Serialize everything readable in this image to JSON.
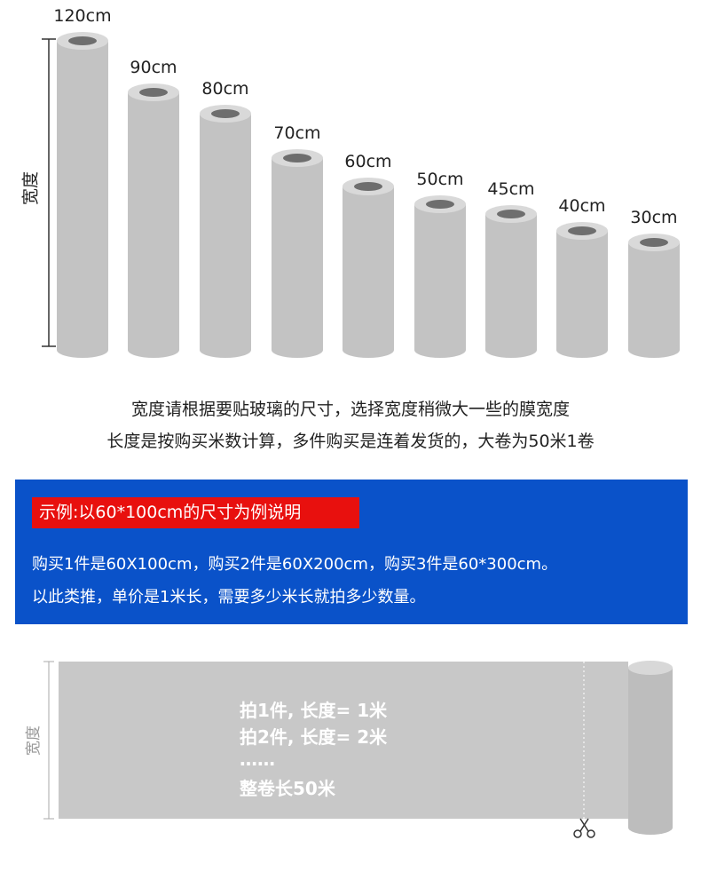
{
  "rolls": [
    {
      "label": "120cm"
    },
    {
      "label": "90cm"
    },
    {
      "label": "80cm"
    },
    {
      "label": "70cm"
    },
    {
      "label": "60cm"
    },
    {
      "label": "50cm"
    },
    {
      "label": "45cm"
    },
    {
      "label": "40cm"
    },
    {
      "label": "30cm"
    }
  ],
  "width_axis_label": "宽度",
  "notes": [
    "宽度请根据要贴玻璃的尺寸，选择宽度稍微大一些的膜宽度",
    "长度是按购买米数计算，多件购买是连着发货的，大卷为50米1卷"
  ],
  "example": {
    "title": "示例:以60*100cm的尺寸为例说明",
    "lines": [
      "购买1件是60X100cm，购买2件是60X200cm，购买3件是60*300cm。",
      "以此类推，单价是1米长，需要多少米长就拍多少数量。"
    ]
  },
  "diagram": {
    "width_label": "宽度",
    "lines": [
      "拍1件, 长度= 1米",
      "拍2件, 长度= 2米",
      "……",
      "整卷长50米"
    ]
  }
}
